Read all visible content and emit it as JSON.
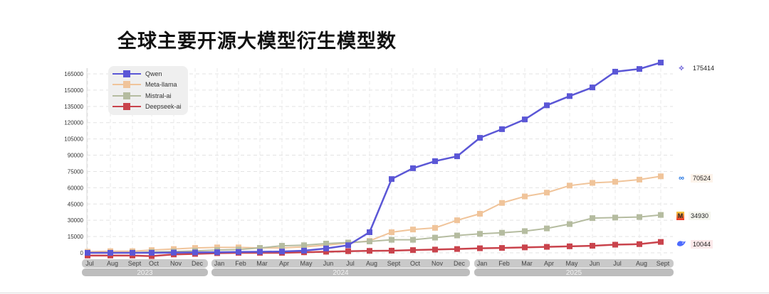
{
  "title": "全球主要开源大模型衍生模型数",
  "legend": [
    {
      "label": "Qwen",
      "color": "#5b57d6"
    },
    {
      "label": "Meta-llama",
      "color": "#f0c49a"
    },
    {
      "label": "Mistral-ai",
      "color": "#b5bca0"
    },
    {
      "label": "Deepseek-ai",
      "color": "#c9434c"
    }
  ],
  "end_labels": [
    {
      "series": "Qwen",
      "icon": "qwen-logo-icon",
      "value": "175414"
    },
    {
      "series": "Meta-llama",
      "icon": "meta-logo-icon",
      "value": "70524"
    },
    {
      "series": "Mistral-ai",
      "icon": "mistral-logo-icon",
      "value": "34930"
    },
    {
      "series": "Deepseek-ai",
      "icon": "deepseek-logo-icon",
      "value": "10044"
    }
  ],
  "years": [
    {
      "label": "2023",
      "months": [
        "Jul",
        "Aug",
        "Sept",
        "Oct",
        "Nov",
        "Dec"
      ]
    },
    {
      "label": "2024",
      "months": [
        "Jan",
        "Feb",
        "Mar",
        "Apr",
        "May",
        "Jun",
        "Jul",
        "Aug",
        "Sept",
        "Oct",
        "Nov",
        "Dec"
      ]
    },
    {
      "label": "2025",
      "months": [
        "Jan",
        "Feb",
        "Mar",
        "Apr",
        "May",
        "Jun",
        "Jul",
        "Aug",
        "Sept"
      ]
    }
  ],
  "chart_data": {
    "type": "line",
    "title": "全球主要开源大模型衍生模型数",
    "xlabel": "",
    "ylabel": "",
    "ylim": [
      0,
      165000
    ],
    "yticks": [
      0,
      15000,
      30000,
      45000,
      60000,
      75000,
      90000,
      105000,
      120000,
      135000,
      150000,
      165000
    ],
    "grid": true,
    "legend_position": "upper left",
    "categories": [
      "2023-Jul",
      "2023-Aug",
      "2023-Sept",
      "2023-Oct",
      "2023-Nov",
      "2023-Dec",
      "2024-Jan",
      "2024-Feb",
      "2024-Mar",
      "2024-Apr",
      "2024-May",
      "2024-Jun",
      "2024-Jul",
      "2024-Aug",
      "2024-Sept",
      "2024-Oct",
      "2024-Nov",
      "2024-Dec",
      "2025-Jan",
      "2025-Feb",
      "2025-Mar",
      "2025-Apr",
      "2025-May",
      "2025-Jun",
      "2025-Jul",
      "2025-Aug",
      "2025-Sept"
    ],
    "series": [
      {
        "name": "Qwen",
        "color": "#5b57d6",
        "values": [
          0,
          0,
          0,
          0,
          200,
          300,
          500,
          800,
          1000,
          1200,
          2000,
          4000,
          7000,
          19000,
          68000,
          78000,
          84500,
          89000,
          106000,
          114000,
          123000,
          136000,
          144500,
          152500,
          167000,
          169500,
          175414
        ]
      },
      {
        "name": "Meta-llama",
        "color": "#f0c49a",
        "values": [
          1000,
          1500,
          1500,
          2500,
          3500,
          4500,
          5000,
          5000,
          4500,
          4500,
          5500,
          7000,
          9000,
          11000,
          19000,
          21500,
          23000,
          30000,
          36000,
          46000,
          52000,
          55500,
          62000,
          64500,
          65500,
          67500,
          70524
        ]
      },
      {
        "name": "Mistral-ai",
        "color": "#b5bca0",
        "values": [
          0,
          0,
          200,
          800,
          1200,
          1800,
          2500,
          3000,
          4500,
          6500,
          7000,
          8500,
          9500,
          10500,
          12000,
          12000,
          14000,
          16000,
          17500,
          18500,
          20000,
          22500,
          26500,
          32000,
          32500,
          33000,
          34930
        ]
      },
      {
        "name": "Deepseek-ai",
        "color": "#c9434c",
        "values": [
          -2500,
          -2500,
          -2500,
          -3000,
          -1500,
          -1000,
          -300,
          0,
          0,
          0,
          500,
          1000,
          1500,
          1800,
          2000,
          2500,
          3000,
          3500,
          4200,
          4500,
          5000,
          5500,
          6000,
          6500,
          7500,
          8000,
          10044
        ]
      }
    ]
  }
}
